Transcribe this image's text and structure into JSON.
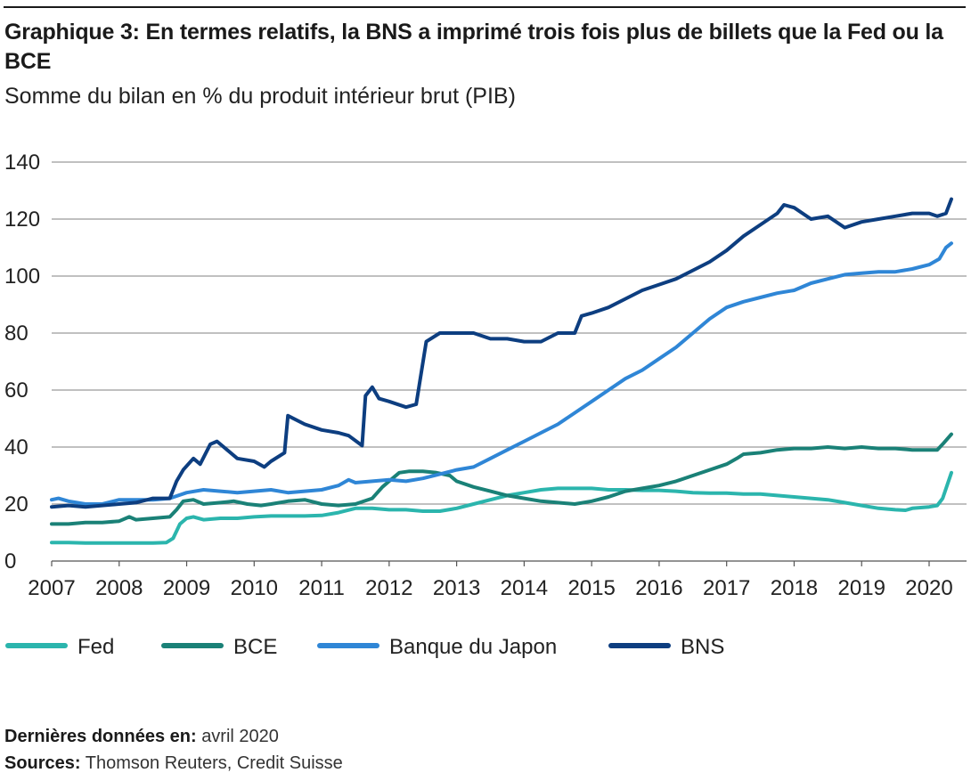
{
  "header": {
    "title": "Graphique 3: En termes relatifs, la BNS a imprimé trois fois plus de billets que la Fed ou la BCE",
    "subtitle": "Somme du bilan en % du produit intérieur brut (PIB)"
  },
  "footer": {
    "last_data_label": "Dernières données en:",
    "last_data_value": "avril 2020",
    "sources_label": "Sources:",
    "sources_value": "Thomson Reuters, Credit Suisse"
  },
  "chart_data": {
    "type": "line",
    "title": "Graphique 3: En termes relatifs, la BNS a imprimé trois fois plus de billets que la Fed ou la BCE",
    "subtitle": "Somme du bilan en % du produit intérieur brut (PIB)",
    "xlabel": "",
    "ylabel": "",
    "xlim": [
      2007.0,
      2020.33
    ],
    "ylim": [
      0,
      140
    ],
    "yticks": [
      0,
      20,
      40,
      60,
      80,
      100,
      120,
      140
    ],
    "xticks": [
      "2007",
      "2008",
      "2009",
      "2010",
      "2011",
      "2012",
      "2013",
      "2014",
      "2015",
      "2016",
      "2017",
      "2018",
      "2019",
      "2020"
    ],
    "grid": "horizontal",
    "legend": "bottom",
    "series": [
      {
        "name": "Fed",
        "color": "#2bb5ad",
        "points": [
          [
            2007.0,
            6.5
          ],
          [
            2007.25,
            6.5
          ],
          [
            2007.5,
            6.3
          ],
          [
            2007.75,
            6.3
          ],
          [
            2008.0,
            6.3
          ],
          [
            2008.25,
            6.3
          ],
          [
            2008.5,
            6.3
          ],
          [
            2008.7,
            6.5
          ],
          [
            2008.8,
            8
          ],
          [
            2008.9,
            13
          ],
          [
            2009.0,
            15
          ],
          [
            2009.1,
            15.5
          ],
          [
            2009.25,
            14.5
          ],
          [
            2009.5,
            15
          ],
          [
            2009.75,
            15
          ],
          [
            2010.0,
            15.5
          ],
          [
            2010.25,
            15.8
          ],
          [
            2010.5,
            15.8
          ],
          [
            2010.75,
            15.8
          ],
          [
            2011.0,
            16
          ],
          [
            2011.25,
            17
          ],
          [
            2011.5,
            18.5
          ],
          [
            2011.75,
            18.5
          ],
          [
            2012.0,
            18
          ],
          [
            2012.25,
            18
          ],
          [
            2012.5,
            17.5
          ],
          [
            2012.75,
            17.5
          ],
          [
            2013.0,
            18.5
          ],
          [
            2013.25,
            20
          ],
          [
            2013.5,
            21.5
          ],
          [
            2013.75,
            23
          ],
          [
            2014.0,
            24
          ],
          [
            2014.25,
            25
          ],
          [
            2014.5,
            25.5
          ],
          [
            2014.75,
            25.5
          ],
          [
            2015.0,
            25.5
          ],
          [
            2015.25,
            25
          ],
          [
            2015.5,
            25
          ],
          [
            2015.75,
            24.8
          ],
          [
            2016.0,
            24.8
          ],
          [
            2016.25,
            24.5
          ],
          [
            2016.5,
            24
          ],
          [
            2016.75,
            23.8
          ],
          [
            2017.0,
            23.8
          ],
          [
            2017.25,
            23.5
          ],
          [
            2017.5,
            23.5
          ],
          [
            2017.75,
            23
          ],
          [
            2018.0,
            22.5
          ],
          [
            2018.25,
            22
          ],
          [
            2018.5,
            21.5
          ],
          [
            2018.75,
            20.5
          ],
          [
            2019.0,
            19.5
          ],
          [
            2019.25,
            18.5
          ],
          [
            2019.5,
            18
          ],
          [
            2019.65,
            17.8
          ],
          [
            2019.75,
            18.5
          ],
          [
            2020.0,
            19
          ],
          [
            2020.12,
            19.5
          ],
          [
            2020.2,
            22
          ],
          [
            2020.33,
            31
          ]
        ]
      },
      {
        "name": "BCE",
        "color": "#1a8177",
        "points": [
          [
            2007.0,
            13
          ],
          [
            2007.25,
            13
          ],
          [
            2007.5,
            13.5
          ],
          [
            2007.75,
            13.5
          ],
          [
            2008.0,
            14
          ],
          [
            2008.15,
            15.5
          ],
          [
            2008.25,
            14.5
          ],
          [
            2008.5,
            15
          ],
          [
            2008.75,
            15.5
          ],
          [
            2008.85,
            18
          ],
          [
            2008.95,
            21
          ],
          [
            2009.1,
            21.5
          ],
          [
            2009.25,
            20
          ],
          [
            2009.5,
            20.5
          ],
          [
            2009.7,
            21
          ],
          [
            2009.9,
            20
          ],
          [
            2010.1,
            19.5
          ],
          [
            2010.25,
            20
          ],
          [
            2010.5,
            21
          ],
          [
            2010.75,
            21.5
          ],
          [
            2011.0,
            20
          ],
          [
            2011.25,
            19.5
          ],
          [
            2011.5,
            20
          ],
          [
            2011.75,
            22
          ],
          [
            2011.9,
            26
          ],
          [
            2012.0,
            28
          ],
          [
            2012.15,
            31
          ],
          [
            2012.3,
            31.5
          ],
          [
            2012.5,
            31.5
          ],
          [
            2012.7,
            31
          ],
          [
            2012.9,
            30
          ],
          [
            2013.0,
            28
          ],
          [
            2013.25,
            26
          ],
          [
            2013.5,
            24.5
          ],
          [
            2013.75,
            23
          ],
          [
            2014.0,
            22
          ],
          [
            2014.25,
            21
          ],
          [
            2014.5,
            20.5
          ],
          [
            2014.75,
            20
          ],
          [
            2015.0,
            21
          ],
          [
            2015.25,
            22.5
          ],
          [
            2015.5,
            24.5
          ],
          [
            2015.75,
            25.5
          ],
          [
            2016.0,
            26.5
          ],
          [
            2016.25,
            28
          ],
          [
            2016.5,
            30
          ],
          [
            2016.75,
            32
          ],
          [
            2017.0,
            34
          ],
          [
            2017.15,
            36
          ],
          [
            2017.25,
            37.5
          ],
          [
            2017.5,
            38
          ],
          [
            2017.75,
            39
          ],
          [
            2018.0,
            39.5
          ],
          [
            2018.25,
            39.5
          ],
          [
            2018.5,
            40
          ],
          [
            2018.75,
            39.5
          ],
          [
            2019.0,
            40
          ],
          [
            2019.25,
            39.5
          ],
          [
            2019.5,
            39.5
          ],
          [
            2019.75,
            39
          ],
          [
            2020.0,
            39
          ],
          [
            2020.12,
            39
          ],
          [
            2020.2,
            41
          ],
          [
            2020.33,
            44.5
          ]
        ]
      },
      {
        "name": "Banque du Japon",
        "color": "#2f86d6",
        "points": [
          [
            2007.0,
            21.5
          ],
          [
            2007.1,
            22
          ],
          [
            2007.25,
            21
          ],
          [
            2007.5,
            20
          ],
          [
            2007.75,
            20
          ],
          [
            2008.0,
            21.5
          ],
          [
            2008.25,
            21.5
          ],
          [
            2008.5,
            21.5
          ],
          [
            2008.75,
            22
          ],
          [
            2009.0,
            24
          ],
          [
            2009.25,
            25
          ],
          [
            2009.5,
            24.5
          ],
          [
            2009.75,
            24
          ],
          [
            2010.0,
            24.5
          ],
          [
            2010.25,
            25
          ],
          [
            2010.5,
            24
          ],
          [
            2010.75,
            24.5
          ],
          [
            2011.0,
            25
          ],
          [
            2011.25,
            26.5
          ],
          [
            2011.4,
            28.5
          ],
          [
            2011.5,
            27.5
          ],
          [
            2011.75,
            28
          ],
          [
            2012.0,
            28.5
          ],
          [
            2012.25,
            28
          ],
          [
            2012.5,
            29
          ],
          [
            2012.75,
            30.5
          ],
          [
            2013.0,
            32
          ],
          [
            2013.25,
            33
          ],
          [
            2013.5,
            36
          ],
          [
            2013.75,
            39
          ],
          [
            2014.0,
            42
          ],
          [
            2014.25,
            45
          ],
          [
            2014.5,
            48
          ],
          [
            2014.75,
            52
          ],
          [
            2015.0,
            56
          ],
          [
            2015.25,
            60
          ],
          [
            2015.5,
            64
          ],
          [
            2015.75,
            67
          ],
          [
            2016.0,
            71
          ],
          [
            2016.25,
            75
          ],
          [
            2016.5,
            80
          ],
          [
            2016.75,
            85
          ],
          [
            2017.0,
            89
          ],
          [
            2017.25,
            91
          ],
          [
            2017.5,
            92.5
          ],
          [
            2017.75,
            94
          ],
          [
            2018.0,
            95
          ],
          [
            2018.25,
            97.5
          ],
          [
            2018.5,
            99
          ],
          [
            2018.75,
            100.5
          ],
          [
            2019.0,
            101
          ],
          [
            2019.25,
            101.5
          ],
          [
            2019.5,
            101.5
          ],
          [
            2019.75,
            102.5
          ],
          [
            2020.0,
            104
          ],
          [
            2020.15,
            106
          ],
          [
            2020.25,
            110
          ],
          [
            2020.33,
            111.5
          ]
        ]
      },
      {
        "name": "BNS",
        "color": "#0d3e80",
        "points": [
          [
            2007.0,
            19
          ],
          [
            2007.25,
            19.5
          ],
          [
            2007.5,
            19
          ],
          [
            2007.75,
            19.5
          ],
          [
            2008.0,
            20
          ],
          [
            2008.25,
            20.5
          ],
          [
            2008.5,
            22
          ],
          [
            2008.75,
            22
          ],
          [
            2008.85,
            28
          ],
          [
            2008.95,
            32
          ],
          [
            2009.1,
            36
          ],
          [
            2009.2,
            34
          ],
          [
            2009.35,
            41
          ],
          [
            2009.45,
            42
          ],
          [
            2009.55,
            40
          ],
          [
            2009.75,
            36
          ],
          [
            2010.0,
            35
          ],
          [
            2010.15,
            33
          ],
          [
            2010.25,
            35
          ],
          [
            2010.45,
            38
          ],
          [
            2010.5,
            51
          ],
          [
            2010.75,
            48
          ],
          [
            2011.0,
            46
          ],
          [
            2011.25,
            45
          ],
          [
            2011.4,
            44
          ],
          [
            2011.6,
            40.5
          ],
          [
            2011.65,
            58
          ],
          [
            2011.75,
            61
          ],
          [
            2011.85,
            57
          ],
          [
            2012.0,
            56
          ],
          [
            2012.25,
            54
          ],
          [
            2012.4,
            55
          ],
          [
            2012.55,
            77
          ],
          [
            2012.75,
            80
          ],
          [
            2013.0,
            80
          ],
          [
            2013.25,
            80
          ],
          [
            2013.5,
            78
          ],
          [
            2013.75,
            78
          ],
          [
            2014.0,
            77
          ],
          [
            2014.25,
            77
          ],
          [
            2014.5,
            80
          ],
          [
            2014.75,
            80
          ],
          [
            2014.85,
            86
          ],
          [
            2015.0,
            87
          ],
          [
            2015.25,
            89
          ],
          [
            2015.5,
            92
          ],
          [
            2015.75,
            95
          ],
          [
            2016.0,
            97
          ],
          [
            2016.25,
            99
          ],
          [
            2016.5,
            102
          ],
          [
            2016.75,
            105
          ],
          [
            2017.0,
            109
          ],
          [
            2017.25,
            114
          ],
          [
            2017.5,
            118
          ],
          [
            2017.75,
            122
          ],
          [
            2017.85,
            125
          ],
          [
            2018.0,
            124
          ],
          [
            2018.25,
            120
          ],
          [
            2018.5,
            121
          ],
          [
            2018.75,
            117
          ],
          [
            2019.0,
            119
          ],
          [
            2019.25,
            120
          ],
          [
            2019.5,
            121
          ],
          [
            2019.75,
            122
          ],
          [
            2020.0,
            122
          ],
          [
            2020.12,
            121
          ],
          [
            2020.25,
            122
          ],
          [
            2020.33,
            127
          ]
        ]
      }
    ]
  }
}
